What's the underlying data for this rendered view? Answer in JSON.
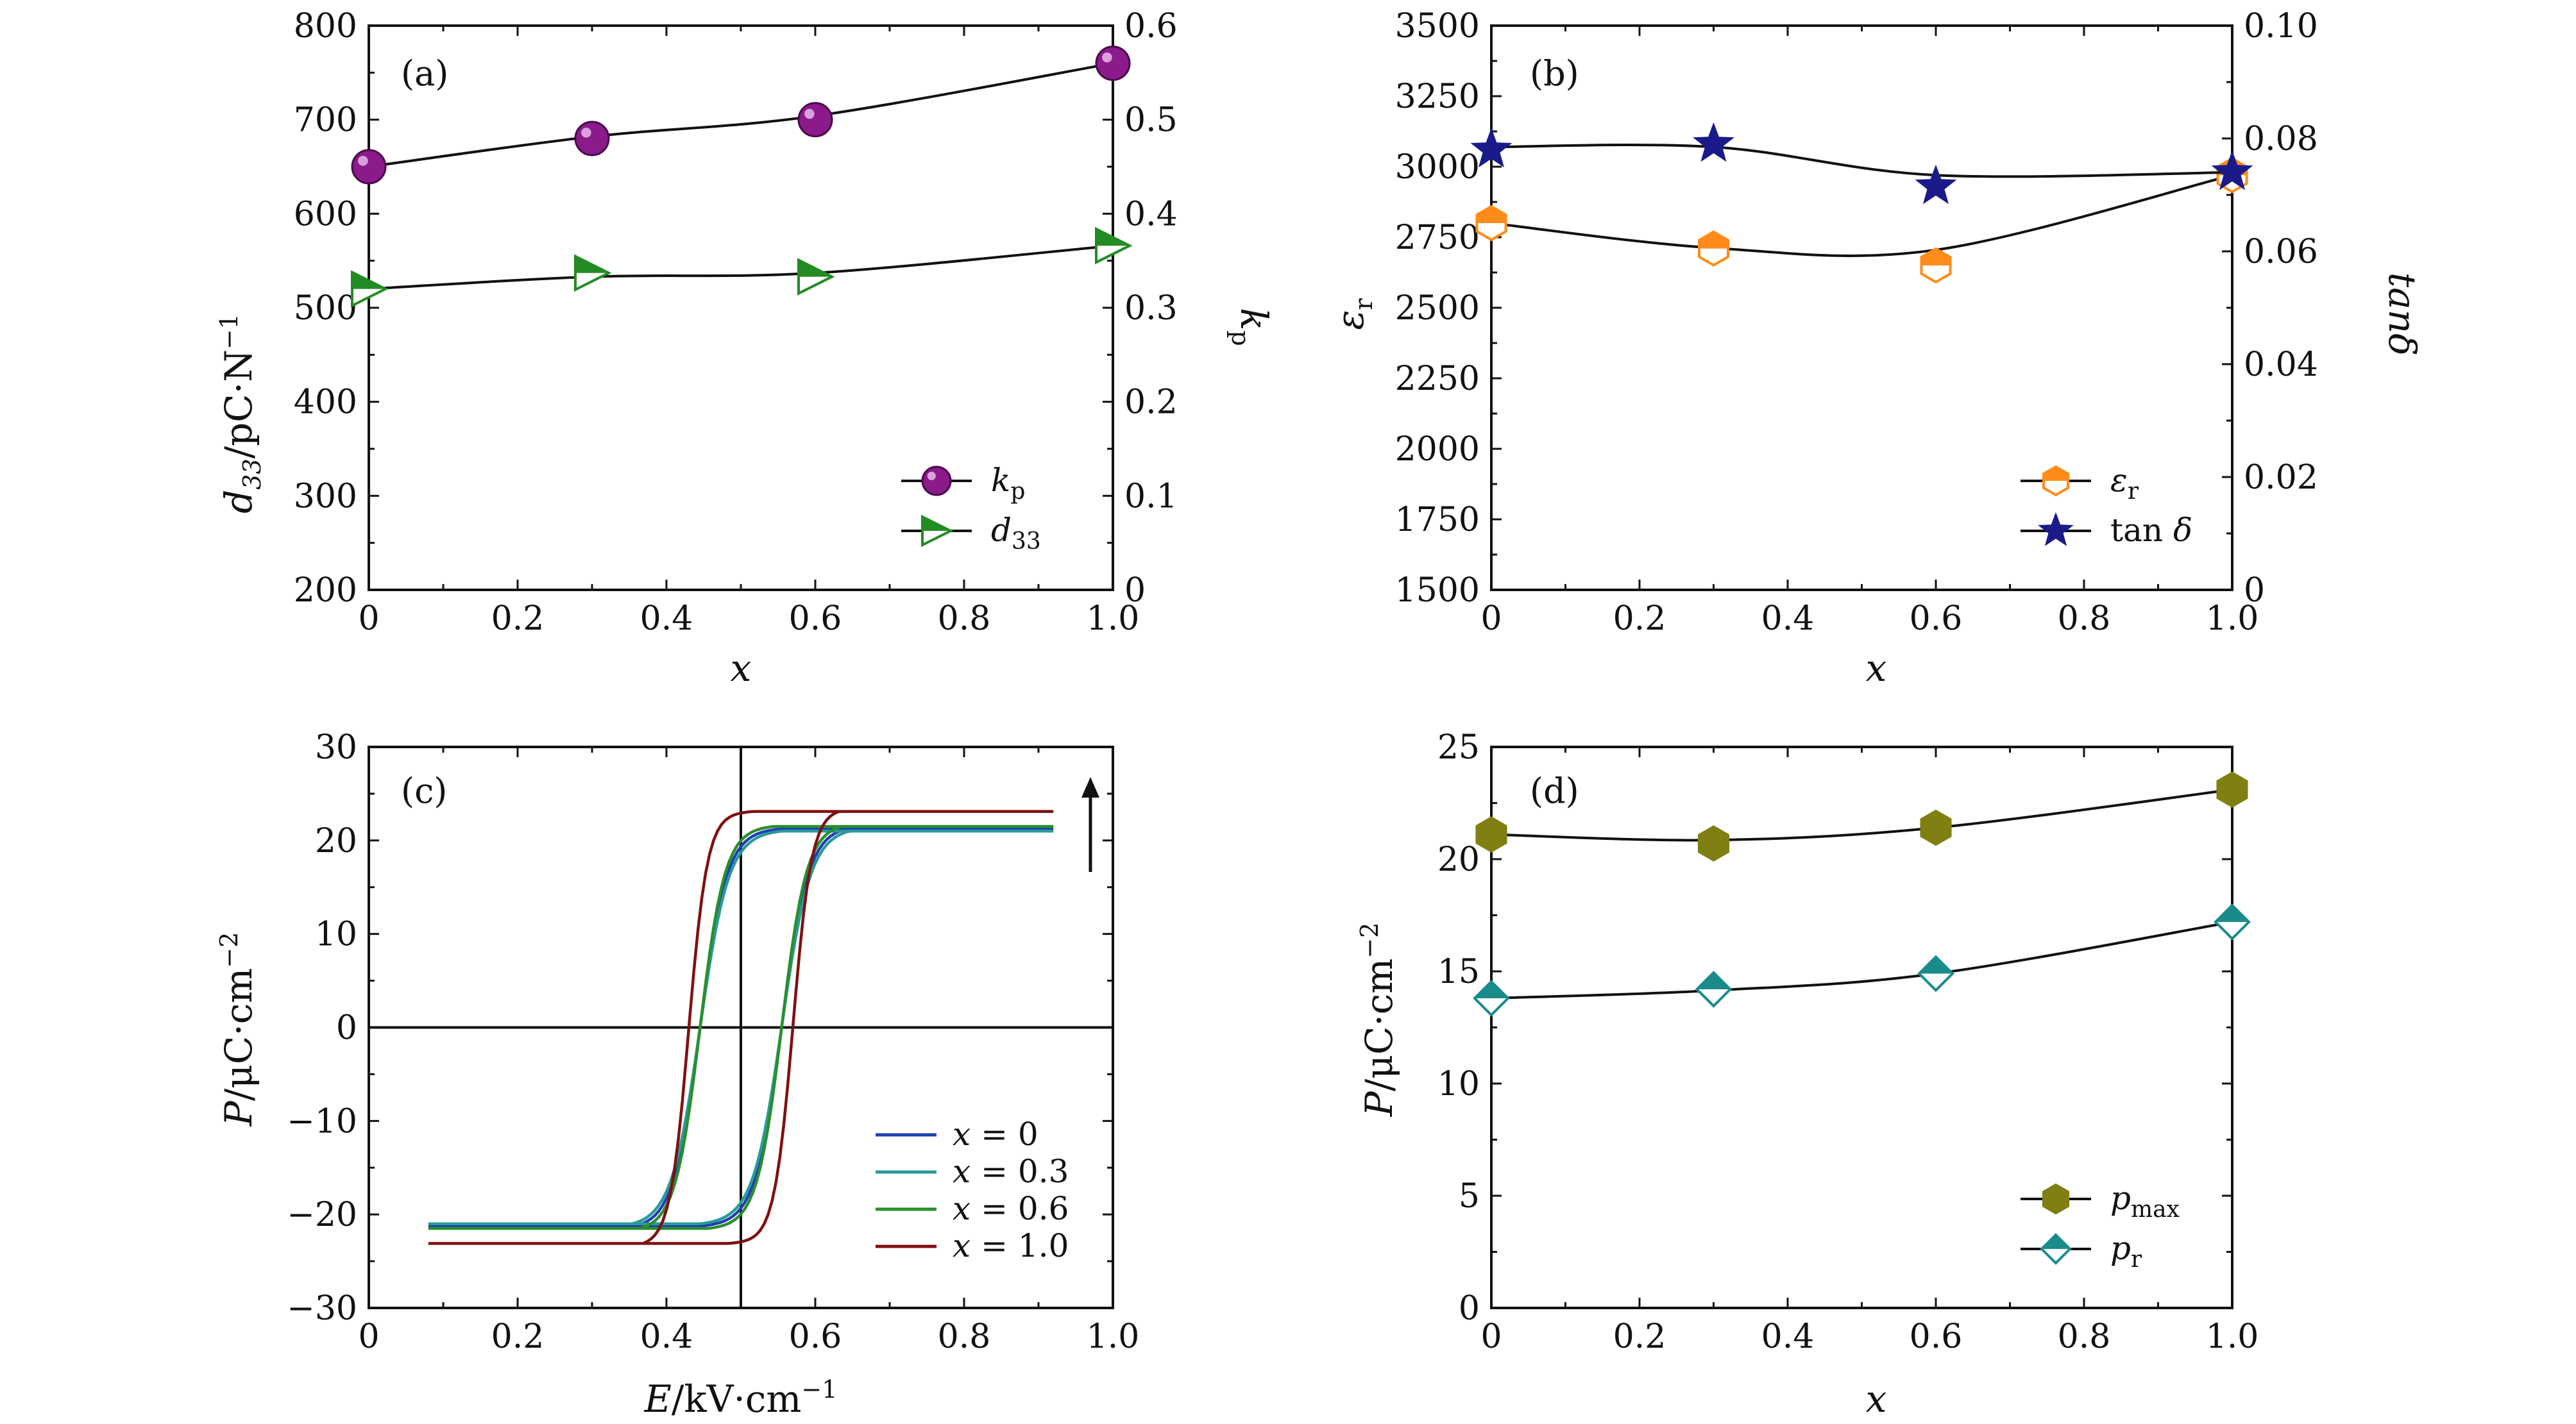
{
  "figure": {
    "background": "#ffffff",
    "colors": {
      "axis": "#111111",
      "kp": "#8b1a8b",
      "d33": "#228b22",
      "eps": "#ff8c1a",
      "tand": "#1a1a8b",
      "pmax": "#7f7f12",
      "pr": "#1a8b8b",
      "x0": "#1f3fb5",
      "x03": "#2a9a9a",
      "x06": "#2a8f2a",
      "x10": "#7f1010"
    }
  },
  "chart_data": [
    {
      "id": "a",
      "panel_label": "(a)",
      "type": "scatter",
      "xlabel": "x",
      "ylabel": "d33/pC·N−1",
      "ylabel_right": "kp",
      "xlim": [
        0,
        1.0
      ],
      "ylim": [
        200,
        800
      ],
      "ylim_right": [
        0,
        0.6
      ],
      "x_ticks": [
        "0",
        "0.2",
        "0.4",
        "0.6",
        "0.8",
        "1.0"
      ],
      "y_ticks": [
        "200",
        "300",
        "400",
        "500",
        "600",
        "700",
        "800"
      ],
      "y_ticks_right": [
        "0",
        "0.1",
        "0.2",
        "0.3",
        "0.4",
        "0.5",
        "0.6"
      ],
      "legend_position": "bottom-right",
      "series": [
        {
          "name": "kp",
          "axis": "right",
          "marker": "sphere",
          "color": "#8b1a8b",
          "x": [
            0,
            0.3,
            0.6,
            1.0
          ],
          "y": [
            0.45,
            0.48,
            0.5,
            0.56
          ],
          "fit": [
            0.45,
            0.482,
            0.504,
            0.56
          ]
        },
        {
          "name": "d33",
          "axis": "left",
          "marker": "triangle-right",
          "color": "#228b22",
          "x": [
            0,
            0.3,
            0.6,
            1.0
          ],
          "y": [
            520,
            537,
            533,
            566
          ],
          "fit": [
            520,
            533,
            537,
            566
          ]
        }
      ]
    },
    {
      "id": "b",
      "panel_label": "(b)",
      "type": "scatter",
      "xlabel": "x",
      "ylabel": "εr",
      "ylabel_right": "tanδ",
      "xlim": [
        0,
        1.0
      ],
      "ylim": [
        1500,
        3500
      ],
      "ylim_right": [
        0,
        0.1
      ],
      "x_ticks": [
        "0",
        "0.2",
        "0.4",
        "0.6",
        "0.8",
        "1.0"
      ],
      "y_ticks": [
        "1500",
        "1750",
        "2000",
        "2250",
        "2500",
        "2750",
        "3000",
        "3250",
        "3500"
      ],
      "y_ticks_right": [
        "0",
        "0.02",
        "0.04",
        "0.06",
        "0.08",
        "0.10"
      ],
      "legend_position": "bottom-right",
      "series": [
        {
          "name": "εr",
          "axis": "left",
          "marker": "hexagon-half",
          "color": "#ff8c1a",
          "x": [
            0,
            0.3,
            0.6,
            1.0
          ],
          "y": [
            2800,
            2710,
            2650,
            2970
          ],
          "fit": [
            2800,
            2712,
            2705,
            2970
          ]
        },
        {
          "name": "tan δ",
          "axis": "right",
          "marker": "star",
          "color": "#1a1a8b",
          "x": [
            0,
            0.3,
            0.6,
            1.0
          ],
          "y": [
            0.078,
            0.079,
            0.0715,
            0.074
          ],
          "fit": [
            0.0785,
            0.0785,
            0.0735,
            0.074
          ]
        }
      ]
    },
    {
      "id": "c",
      "panel_label": "(c)",
      "type": "line",
      "xlabel": "E/kV·cm−1",
      "ylabel": "P/μC·cm−2",
      "xlim": [
        0,
        1.0
      ],
      "ylim": [
        -30,
        30
      ],
      "x_ticks": [
        "0",
        "0.2",
        "0.4",
        "0.6",
        "0.8",
        "1.0"
      ],
      "y_ticks": [
        "−30",
        "−20",
        "−10",
        "0",
        "10",
        "20",
        "30"
      ],
      "legend_position": "bottom-right",
      "loop_x_range": [
        0.08,
        0.92
      ],
      "series": [
        {
          "name": "x = 0",
          "color": "#1f3fb5",
          "center": 0.5,
          "coercive": 0.055,
          "p_max": 21.2,
          "remnant": 13.5,
          "sharpness": 28
        },
        {
          "name": "x = 0.3",
          "color": "#2a9a9a",
          "center": 0.5,
          "coercive": 0.055,
          "p_max": 21.0,
          "remnant": 14.2,
          "sharpness": 26
        },
        {
          "name": "x = 0.6",
          "color": "#2a8f2a",
          "center": 0.5,
          "coercive": 0.055,
          "p_max": 21.5,
          "remnant": 14.9,
          "sharpness": 30
        },
        {
          "name": "x = 1.0",
          "color": "#7f1010",
          "center": 0.5,
          "coercive": 0.07,
          "p_max": 23.1,
          "remnant": 17.0,
          "sharpness": 40
        }
      ]
    },
    {
      "id": "d",
      "panel_label": "(d)",
      "type": "scatter",
      "xlabel": "x",
      "ylabel": "P/μC·cm−2",
      "xlim": [
        0,
        1.0
      ],
      "ylim": [
        0,
        25
      ],
      "x_ticks": [
        "0",
        "0.2",
        "0.4",
        "0.6",
        "0.8",
        "1.0"
      ],
      "y_ticks": [
        "0",
        "5",
        "10",
        "15",
        "20",
        "25"
      ],
      "legend_position": "bottom-right",
      "series": [
        {
          "name": "pmax",
          "marker": "hexagon",
          "color": "#7f7f12",
          "x": [
            0,
            0.3,
            0.6,
            1.0
          ],
          "y": [
            21.1,
            20.7,
            21.4,
            23.1
          ],
          "fit": [
            21.1,
            20.85,
            21.4,
            23.1
          ]
        },
        {
          "name": "pr",
          "marker": "diamond",
          "color": "#1a8b8b",
          "x": [
            0,
            0.3,
            0.6,
            1.0
          ],
          "y": [
            13.8,
            14.2,
            14.9,
            17.2
          ],
          "fit": [
            13.8,
            14.15,
            14.9,
            17.2
          ]
        }
      ]
    }
  ]
}
